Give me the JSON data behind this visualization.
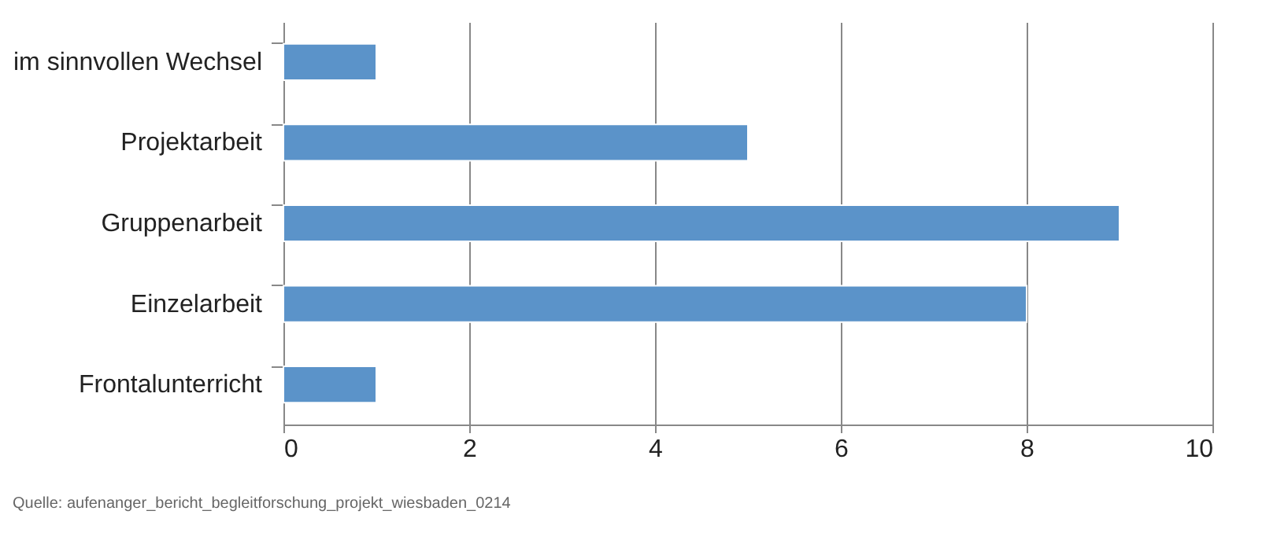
{
  "chart_data": {
    "type": "bar",
    "orientation": "horizontal",
    "categories": [
      "im sinnvollen Wechsel",
      "Projektarbeit",
      "Gruppenarbeit",
      "Einzelarbeit",
      "Frontalunterricht"
    ],
    "values": [
      1,
      5,
      9,
      8,
      1
    ],
    "color": "#5b93c9",
    "xlim": [
      0,
      10
    ],
    "xticks": [
      0,
      2,
      4,
      6,
      8,
      10
    ],
    "grid": "x",
    "annotations": [
      "Quelle: aufenanger_bericht_begleitforschung_projekt_wiesbaden_0214"
    ]
  }
}
